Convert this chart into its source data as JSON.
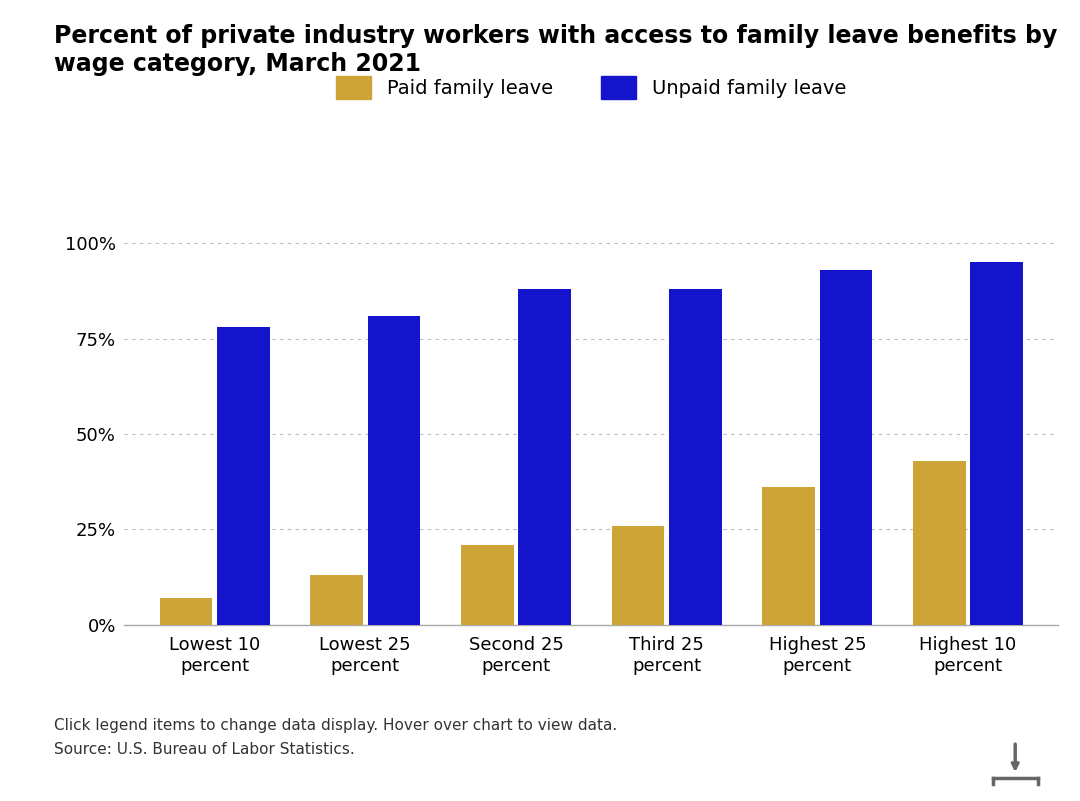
{
  "title_line1": "Percent of private industry workers with access to family leave benefits by",
  "title_line2": "wage category, March 2021",
  "categories": [
    "Lowest 10\npercent",
    "Lowest 25\npercent",
    "Second 25\npercent",
    "Third 25\npercent",
    "Highest 25\npercent",
    "Highest 10\npercent"
  ],
  "paid_values": [
    7,
    13,
    21,
    26,
    36,
    43
  ],
  "unpaid_values": [
    78,
    81,
    88,
    88,
    93,
    95
  ],
  "paid_color": "#CDA438",
  "unpaid_color": "#1414CC",
  "paid_label": "Paid family leave",
  "unpaid_label": "Unpaid family leave",
  "yticks": [
    0,
    25,
    50,
    75,
    100
  ],
  "ytick_labels": [
    "0%",
    "25%",
    "50%",
    "75%",
    "100%"
  ],
  "ylim": [
    0,
    105
  ],
  "background_color": "#ffffff",
  "footnote_line1": "Click legend items to change data display. Hover over chart to view data.",
  "footnote_line2": "Source: U.S. Bureau of Labor Statistics.",
  "title_fontsize": 17,
  "legend_fontsize": 14,
  "tick_fontsize": 13,
  "footnote_fontsize": 11
}
